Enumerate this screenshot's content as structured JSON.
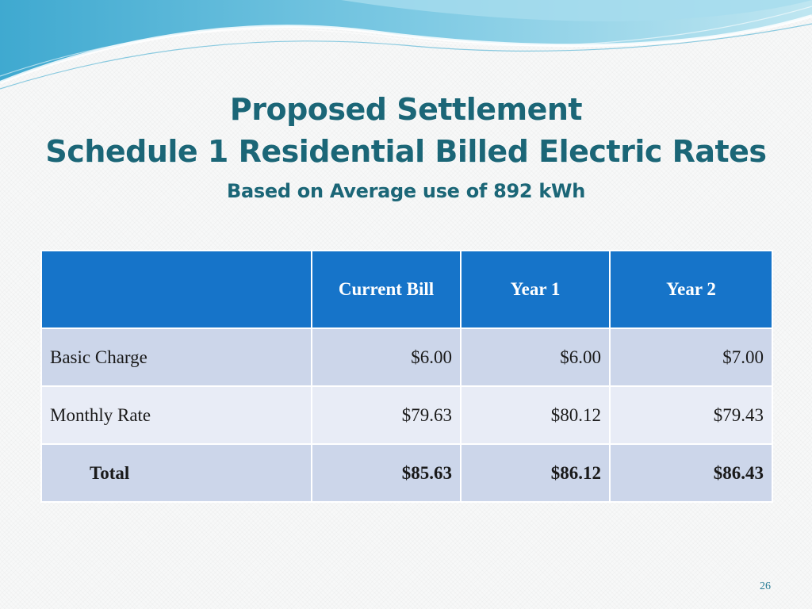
{
  "slide": {
    "title_line1": "Proposed Settlement",
    "title_line2": "Schedule 1 Residential Billed Electric Rates",
    "subtitle": "Based on Average use of 892 kWh",
    "page_number": "26"
  },
  "table": {
    "headers": [
      "",
      "Current Bill",
      "Year 1",
      "Year 2"
    ],
    "rows": [
      {
        "label": "Basic Charge",
        "current": "$6.00",
        "year1": "$6.00",
        "year2": "$7.00"
      },
      {
        "label": "Monthly Rate",
        "current": "$79.63",
        "year1": "$80.12",
        "year2": "$79.43"
      },
      {
        "label": "Total",
        "current": "$85.63",
        "year1": "$86.12",
        "year2": "$86.43"
      }
    ]
  },
  "colors": {
    "title": "#1b6677",
    "header_bg": "#1674c9",
    "row_dark": "#ccd6ea",
    "row_light": "#e8ecf6"
  }
}
